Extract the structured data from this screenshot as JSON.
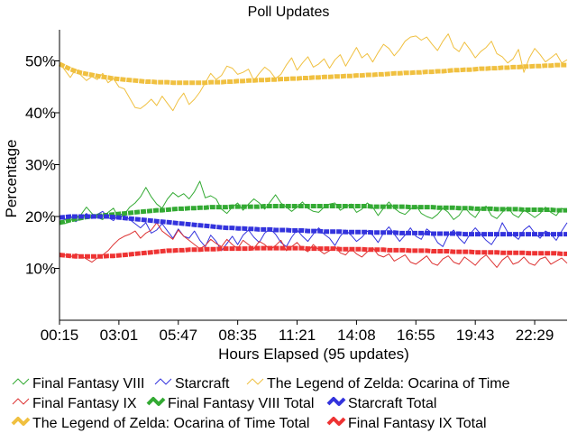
{
  "chart_data": {
    "type": "line",
    "title": "Poll Updates",
    "xlabel": "Hours Elapsed (95 updates)",
    "ylabel": "Percentage",
    "ylim": [
      0,
      56
    ],
    "y_ticks": [
      10,
      20,
      30,
      40,
      50
    ],
    "y_tick_labels": [
      "10%",
      "20%",
      "30%",
      "40%",
      "50%"
    ],
    "x_tick_labels": [
      "00:15",
      "03:01",
      "05:47",
      "08:35",
      "11:21",
      "14:08",
      "16:55",
      "19:43",
      "22:29"
    ],
    "x_tick_indices": [
      0,
      11,
      22,
      33,
      44,
      55,
      66,
      77,
      88
    ],
    "n_updates": 95,
    "grid": false,
    "legend_position": "bottom",
    "series": [
      {
        "name": "Final Fantasy VIII",
        "color": "#33aa33",
        "kind": "thin",
        "values": [
          19.0,
          18.6,
          19.2,
          19.8,
          20.4,
          21.8,
          20.6,
          19.8,
          19.4,
          20.8,
          21.6,
          19.6,
          20.4,
          21.8,
          22.6,
          23.8,
          25.6,
          23.8,
          22.4,
          21.6,
          23.4,
          24.6,
          23.8,
          24.4,
          23.4,
          24.8,
          26.8,
          23.6,
          24.0,
          23.4,
          21.4,
          20.6,
          21.8,
          22.6,
          21.2,
          22.4,
          23.4,
          22.6,
          21.4,
          22.8,
          24.2,
          22.6,
          21.8,
          21.0,
          21.8,
          22.8,
          21.6,
          21.0,
          20.8,
          21.8,
          22.4,
          22.6,
          21.2,
          21.8,
          22.4,
          20.8,
          21.4,
          22.6,
          21.8,
          20.2,
          21.6,
          22.8,
          21.6,
          20.8,
          20.4,
          21.4,
          22.2,
          20.6,
          20.0,
          19.6,
          20.4,
          21.6,
          20.8,
          19.4,
          20.2,
          21.8,
          20.6,
          19.8,
          21.4,
          22.0,
          20.2,
          19.6,
          20.8,
          21.8,
          20.4,
          19.8,
          21.2,
          20.6,
          19.8,
          20.6,
          21.8,
          20.8,
          20.2,
          21.6,
          21.0
        ]
      },
      {
        "name": "Starcraft",
        "color": "#3333dd",
        "kind": "thin",
        "values": [
          20.0,
          19.4,
          20.2,
          19.0,
          19.8,
          20.6,
          19.6,
          20.4,
          21.0,
          19.8,
          19.2,
          20.6,
          20.2,
          19.4,
          18.6,
          17.8,
          18.8,
          16.8,
          17.4,
          18.6,
          17.2,
          15.8,
          17.6,
          16.2,
          15.8,
          17.2,
          15.4,
          14.2,
          16.4,
          15.2,
          13.4,
          14.8,
          16.2,
          14.6,
          16.4,
          17.4,
          16.0,
          15.0,
          16.8,
          17.6,
          16.6,
          15.0,
          14.2,
          16.0,
          17.4,
          16.2,
          15.2,
          16.6,
          17.8,
          16.6,
          15.8,
          14.4,
          16.2,
          17.4,
          16.4,
          15.2,
          16.0,
          17.2,
          16.4,
          15.0,
          16.8,
          18.0,
          16.6,
          15.2,
          16.4,
          17.8,
          16.2,
          15.6,
          17.6,
          16.8,
          15.0,
          14.2,
          16.4,
          17.4,
          15.8,
          14.8,
          16.6,
          17.8,
          16.6,
          15.4,
          14.6,
          16.2,
          18.8,
          17.0,
          16.4,
          15.6,
          17.4,
          18.2,
          16.8,
          15.8,
          17.2,
          16.6,
          15.4,
          17.2,
          18.8
        ]
      },
      {
        "name": "The Legend of Zelda: Ocarina of Time",
        "color": "#f0c040",
        "kind": "thin",
        "values": [
          49.6,
          48.2,
          46.8,
          48.4,
          47.2,
          46.2,
          47.0,
          46.4,
          47.6,
          45.8,
          46.6,
          45.0,
          44.6,
          42.8,
          41.0,
          40.8,
          41.6,
          42.6,
          41.4,
          43.2,
          41.8,
          40.4,
          42.4,
          43.8,
          41.6,
          42.6,
          44.0,
          45.8,
          47.6,
          46.4,
          47.2,
          49.0,
          48.6,
          47.4,
          47.8,
          48.4,
          46.2,
          47.6,
          48.8,
          48.0,
          46.6,
          47.4,
          49.2,
          50.6,
          48.2,
          49.6,
          50.8,
          48.8,
          49.4,
          50.4,
          48.6,
          50.2,
          51.2,
          49.0,
          50.8,
          52.6,
          50.6,
          51.4,
          49.8,
          51.6,
          53.2,
          52.4,
          51.0,
          52.2,
          53.8,
          54.6,
          54.8,
          54.0,
          54.6,
          53.2,
          52.0,
          53.8,
          55.2,
          52.6,
          51.8,
          53.6,
          52.2,
          50.6,
          51.8,
          52.6,
          53.8,
          51.4,
          50.8,
          49.6,
          50.4,
          52.2,
          47.8,
          50.6,
          52.4,
          51.2,
          49.8,
          50.6,
          51.4,
          49.6,
          50.2
        ]
      },
      {
        "name": "Final Fantasy IX",
        "color": "#dd3333",
        "kind": "thin",
        "values": [
          13.0,
          12.6,
          12.2,
          12.8,
          12.4,
          11.8,
          11.2,
          12.0,
          12.6,
          13.4,
          14.6,
          15.6,
          16.2,
          16.6,
          17.2,
          15.8,
          16.8,
          17.4,
          18.8,
          17.2,
          16.4,
          15.6,
          17.4,
          16.2,
          15.4,
          14.6,
          13.8,
          14.4,
          15.6,
          14.8,
          14.2,
          15.6,
          14.6,
          13.8,
          15.4,
          14.6,
          13.8,
          15.2,
          14.6,
          13.6,
          14.4,
          15.4,
          13.4,
          14.2,
          15.0,
          13.8,
          13.2,
          14.6,
          13.6,
          12.8,
          13.4,
          14.2,
          13.0,
          12.6,
          13.8,
          12.8,
          12.2,
          13.2,
          14.0,
          12.6,
          12.2,
          12.8,
          11.4,
          12.0,
          12.6,
          11.2,
          10.8,
          11.6,
          12.4,
          11.0,
          10.6,
          11.8,
          12.4,
          11.2,
          10.8,
          12.2,
          11.4,
          10.6,
          11.8,
          12.6,
          11.4,
          10.2,
          11.6,
          12.4,
          10.8,
          11.2,
          12.2,
          11.0,
          10.6,
          11.8,
          12.2,
          10.8,
          11.4,
          12.0,
          11.0
        ]
      },
      {
        "name": "Final Fantasy VIII Total",
        "color": "#33aa33",
        "kind": "thick",
        "values": [
          18.8,
          19.0,
          19.3,
          19.5,
          19.7,
          19.9,
          20.0,
          20.1,
          20.2,
          20.3,
          20.4,
          20.5,
          20.6,
          20.7,
          20.8,
          20.9,
          21.0,
          21.1,
          21.2,
          21.2,
          21.3,
          21.4,
          21.5,
          21.5,
          21.6,
          21.6,
          21.7,
          21.7,
          21.8,
          21.8,
          21.8,
          21.8,
          21.9,
          21.9,
          21.9,
          21.9,
          21.9,
          21.9,
          22.0,
          22.0,
          22.0,
          22.0,
          22.0,
          22.0,
          22.0,
          22.0,
          22.0,
          22.0,
          22.0,
          22.0,
          22.0,
          22.0,
          22.0,
          22.0,
          22.0,
          22.0,
          22.0,
          22.0,
          21.9,
          21.9,
          21.9,
          21.9,
          21.9,
          21.9,
          21.9,
          21.8,
          21.8,
          21.8,
          21.8,
          21.8,
          21.7,
          21.7,
          21.7,
          21.7,
          21.6,
          21.6,
          21.6,
          21.5,
          21.5,
          21.5,
          21.5,
          21.4,
          21.4,
          21.4,
          21.4,
          21.4,
          21.3,
          21.3,
          21.3,
          21.3,
          21.3,
          21.3,
          21.2,
          21.2,
          21.2
        ]
      },
      {
        "name": "Starcraft Total",
        "color": "#3333dd",
        "kind": "thick",
        "values": [
          19.8,
          19.9,
          20.0,
          20.0,
          20.0,
          20.0,
          20.0,
          20.0,
          20.0,
          20.0,
          19.9,
          19.8,
          19.7,
          19.6,
          19.5,
          19.4,
          19.3,
          19.2,
          19.1,
          19.0,
          18.9,
          18.8,
          18.7,
          18.6,
          18.5,
          18.4,
          18.3,
          18.2,
          18.1,
          18.0,
          17.9,
          17.8,
          17.8,
          17.7,
          17.7,
          17.6,
          17.6,
          17.5,
          17.5,
          17.5,
          17.4,
          17.4,
          17.4,
          17.3,
          17.3,
          17.3,
          17.2,
          17.2,
          17.2,
          17.1,
          17.1,
          17.1,
          17.1,
          17.0,
          17.0,
          17.0,
          17.0,
          17.0,
          16.9,
          16.9,
          16.9,
          16.9,
          16.9,
          16.8,
          16.8,
          16.8,
          16.8,
          16.8,
          16.8,
          16.7,
          16.7,
          16.7,
          16.7,
          16.7,
          16.7,
          16.6,
          16.6,
          16.6,
          16.6,
          16.6,
          16.6,
          16.6,
          16.6,
          16.6,
          16.6,
          16.6,
          16.6,
          16.6,
          16.6,
          16.6,
          16.6,
          16.6,
          16.6,
          16.6,
          16.6
        ]
      },
      {
        "name": "The Legend of Zelda: Ocarina of Time Total",
        "color": "#f0c040",
        "kind": "thick",
        "values": [
          49.4,
          48.9,
          48.4,
          48.0,
          47.7,
          47.5,
          47.3,
          47.1,
          46.9,
          46.8,
          46.6,
          46.5,
          46.4,
          46.3,
          46.2,
          46.1,
          46.0,
          46.0,
          45.9,
          45.9,
          45.9,
          45.8,
          45.8,
          45.8,
          45.8,
          45.8,
          45.8,
          45.8,
          45.9,
          45.9,
          45.9,
          46.0,
          46.0,
          46.1,
          46.1,
          46.2,
          46.2,
          46.3,
          46.3,
          46.4,
          46.4,
          46.5,
          46.5,
          46.6,
          46.6,
          46.7,
          46.7,
          46.8,
          46.8,
          46.9,
          46.9,
          47.0,
          47.0,
          47.1,
          47.1,
          47.2,
          47.2,
          47.3,
          47.3,
          47.4,
          47.4,
          47.5,
          47.6,
          47.6,
          47.7,
          47.7,
          47.8,
          47.8,
          47.9,
          47.9,
          48.0,
          48.0,
          48.1,
          48.2,
          48.2,
          48.3,
          48.3,
          48.4,
          48.5,
          48.5,
          48.6,
          48.6,
          48.7,
          48.7,
          48.8,
          48.8,
          48.9,
          48.9,
          49.0,
          49.0,
          49.1,
          49.1,
          49.2,
          49.2,
          49.2
        ]
      },
      {
        "name": "Final Fantasy IX Total",
        "color": "#ee3333",
        "kind": "thick",
        "values": [
          12.6,
          12.5,
          12.4,
          12.3,
          12.3,
          12.3,
          12.3,
          12.3,
          12.3,
          12.4,
          12.4,
          12.5,
          12.6,
          12.7,
          12.8,
          12.9,
          13.0,
          13.1,
          13.2,
          13.3,
          13.4,
          13.4,
          13.5,
          13.5,
          13.6,
          13.6,
          13.6,
          13.7,
          13.7,
          13.7,
          13.8,
          13.8,
          13.8,
          13.8,
          13.8,
          13.8,
          13.9,
          13.9,
          13.9,
          13.9,
          13.9,
          13.9,
          13.9,
          13.9,
          13.9,
          13.9,
          13.8,
          13.8,
          13.8,
          13.8,
          13.8,
          13.8,
          13.7,
          13.7,
          13.7,
          13.7,
          13.7,
          13.6,
          13.6,
          13.6,
          13.6,
          13.5,
          13.5,
          13.5,
          13.5,
          13.4,
          13.4,
          13.4,
          13.4,
          13.3,
          13.3,
          13.3,
          13.3,
          13.2,
          13.2,
          13.2,
          13.2,
          13.1,
          13.1,
          13.1,
          13.1,
          13.1,
          13.0,
          13.0,
          13.0,
          13.0,
          13.0,
          12.9,
          12.9,
          12.9,
          12.9,
          12.9,
          12.9,
          12.8,
          12.8
        ]
      }
    ],
    "legend_rows": [
      [
        "Final Fantasy VIII",
        "Starcraft",
        "The Legend of Zelda: Ocarina of Time"
      ],
      [
        "Final Fantasy IX",
        "Final Fantasy VIII Total",
        "Starcraft Total"
      ],
      [
        "The Legend of Zelda: Ocarina of Time Total",
        "Final Fantasy IX Total"
      ]
    ]
  }
}
